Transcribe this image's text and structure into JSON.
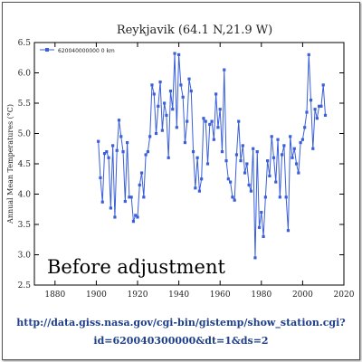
{
  "chart_data": {
    "type": "line",
    "title": "Reykjavik (64.1 N,21.9 W)",
    "xlabel": "",
    "ylabel": "Annual Mean Temperatures (°C)",
    "xlim": [
      1870,
      2020
    ],
    "ylim": [
      2.5,
      6.5
    ],
    "xticks": [
      1880,
      1900,
      1920,
      1940,
      1960,
      1980,
      2000,
      2020
    ],
    "yticks": [
      2.5,
      3.0,
      3.5,
      4.0,
      4.5,
      5.0,
      5.5,
      6.0,
      6.5
    ],
    "grid": false,
    "legend_position": "top-left",
    "series": [
      {
        "name": "620040000000 0 km",
        "color": "#3a5fd9",
        "points": [
          [
            1901,
            4.87
          ],
          [
            1902,
            4.27
          ],
          [
            1903,
            3.87
          ],
          [
            1904,
            4.67
          ],
          [
            1905,
            4.7
          ],
          [
            1906,
            4.6
          ],
          [
            1907,
            3.77
          ],
          [
            1908,
            4.8
          ],
          [
            1909,
            3.62
          ],
          [
            1910,
            4.72
          ],
          [
            1911,
            5.22
          ],
          [
            1912,
            4.95
          ],
          [
            1913,
            4.7
          ],
          [
            1914,
            3.88
          ],
          [
            1915,
            4.85
          ],
          [
            1916,
            3.95
          ],
          [
            1917,
            3.95
          ],
          [
            1918,
            3.55
          ],
          [
            1919,
            3.65
          ],
          [
            1920,
            3.62
          ],
          [
            1921,
            4.15
          ],
          [
            1922,
            4.35
          ],
          [
            1923,
            3.95
          ],
          [
            1924,
            4.65
          ],
          [
            1925,
            4.7
          ],
          [
            1926,
            4.95
          ],
          [
            1927,
            5.8
          ],
          [
            1928,
            5.65
          ],
          [
            1929,
            5.0
          ],
          [
            1930,
            5.45
          ],
          [
            1931,
            5.85
          ],
          [
            1932,
            5.05
          ],
          [
            1933,
            5.5
          ],
          [
            1934,
            5.3
          ],
          [
            1935,
            4.6
          ],
          [
            1936,
            5.7
          ],
          [
            1937,
            5.4
          ],
          [
            1938,
            6.32
          ],
          [
            1939,
            5.1
          ],
          [
            1940,
            6.3
          ],
          [
            1941,
            5.8
          ],
          [
            1942,
            5.6
          ],
          [
            1943,
            4.85
          ],
          [
            1944,
            5.2
          ],
          [
            1945,
            5.9
          ],
          [
            1946,
            5.7
          ],
          [
            1947,
            4.7
          ],
          [
            1948,
            4.1
          ],
          [
            1949,
            4.6
          ],
          [
            1950,
            4.05
          ],
          [
            1951,
            4.25
          ],
          [
            1952,
            5.25
          ],
          [
            1953,
            5.2
          ],
          [
            1954,
            4.5
          ],
          [
            1955,
            5.15
          ],
          [
            1956,
            5.2
          ],
          [
            1957,
            4.9
          ],
          [
            1958,
            5.65
          ],
          [
            1959,
            5.1
          ],
          [
            1960,
            5.4
          ],
          [
            1961,
            4.7
          ],
          [
            1962,
            6.05
          ],
          [
            1963,
            4.55
          ],
          [
            1964,
            4.25
          ],
          [
            1965,
            4.2
          ],
          [
            1966,
            3.95
          ],
          [
            1967,
            3.9
          ],
          [
            1968,
            4.65
          ],
          [
            1969,
            5.2
          ],
          [
            1970,
            4.55
          ],
          [
            1971,
            4.8
          ],
          [
            1972,
            4.35
          ],
          [
            1973,
            4.5
          ],
          [
            1974,
            4.15
          ],
          [
            1975,
            4.05
          ],
          [
            1976,
            4.75
          ],
          [
            1977,
            2.95
          ],
          [
            1978,
            4.7
          ],
          [
            1979,
            3.45
          ],
          [
            1980,
            3.7
          ],
          [
            1981,
            3.3
          ],
          [
            1982,
            3.95
          ],
          [
            1983,
            4.55
          ],
          [
            1984,
            4.3
          ],
          [
            1985,
            4.95
          ],
          [
            1986,
            4.6
          ],
          [
            1987,
            4.2
          ],
          [
            1988,
            4.9
          ],
          [
            1989,
            3.95
          ],
          [
            1990,
            4.65
          ],
          [
            1991,
            4.8
          ],
          [
            1992,
            3.95
          ],
          [
            1993,
            3.4
          ],
          [
            1994,
            4.95
          ],
          [
            1995,
            4.6
          ],
          [
            1996,
            4.75
          ],
          [
            1997,
            4.5
          ],
          [
            1998,
            4.35
          ],
          [
            1999,
            4.85
          ],
          [
            2000,
            4.9
          ],
          [
            2001,
            5.1
          ],
          [
            2002,
            5.35
          ],
          [
            2003,
            6.3
          ],
          [
            2004,
            5.55
          ],
          [
            2005,
            4.75
          ],
          [
            2006,
            5.4
          ],
          [
            2007,
            5.25
          ],
          [
            2008,
            5.45
          ],
          [
            2009,
            5.45
          ],
          [
            2010,
            5.8
          ],
          [
            2011,
            5.3
          ]
        ]
      }
    ],
    "annotations": [
      "Before adjustment"
    ]
  },
  "source": {
    "line1": "http://data.giss.nasa.gov/cgi-bin/gistemp/show_station.cgi?",
    "line2": "id=620040300000&dt=1&ds=2"
  }
}
